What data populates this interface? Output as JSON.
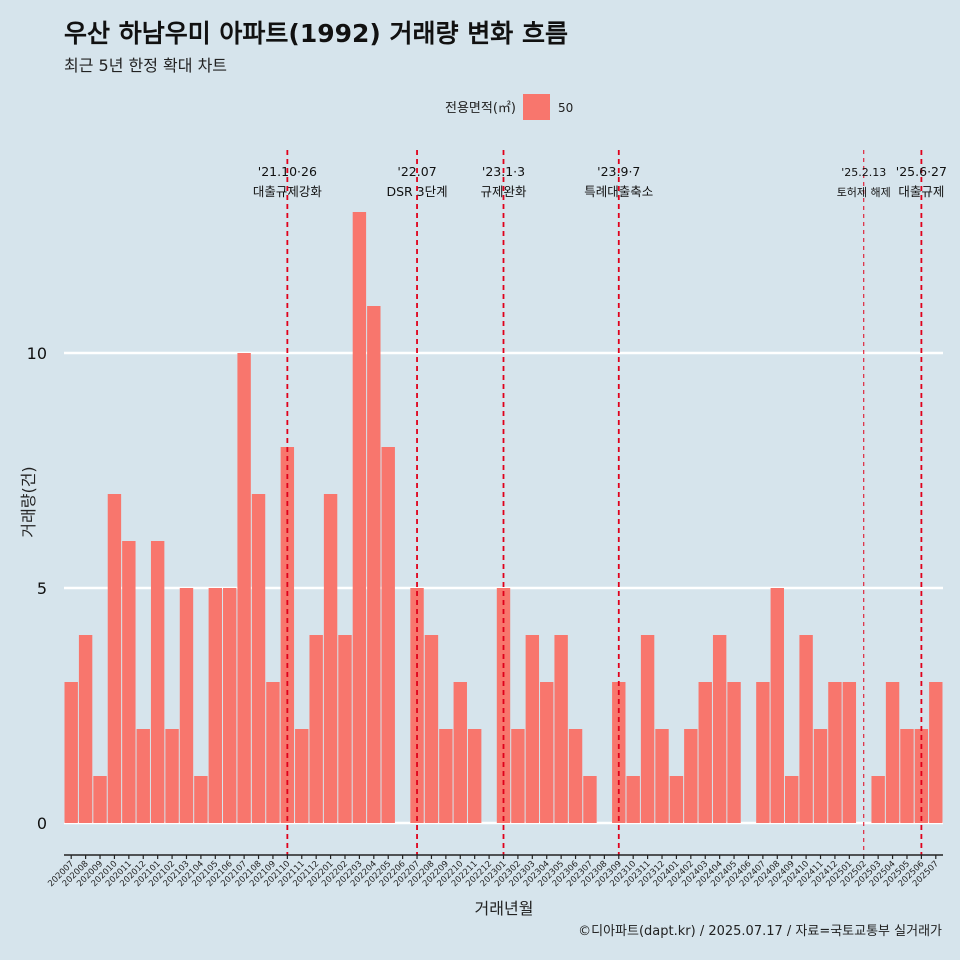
{
  "title": "우산 하남우미 아파트(1992) 거래량 변화 흐름",
  "subtitle": "최근 5년 한정 확대 차트",
  "caption": "©디아파트(dapt.kr) / 2025.07.17 / 자료=국토교통부 실거래가",
  "colors": {
    "bar": "#f8766d",
    "background": "#d6e4ec",
    "grid": "#ffffff",
    "vline": "#e0001a"
  },
  "chart_data": {
    "type": "bar",
    "xlabel": "거래년월",
    "ylabel": "거래량(건)",
    "ylim": [
      -0.6,
      13.8
    ],
    "yticks": [
      0,
      5,
      10
    ],
    "legend": {
      "title": "전용면적(㎡)",
      "entries": [
        "50"
      ],
      "placement": "top-center"
    },
    "categories": [
      "202007",
      "202008",
      "202009",
      "202010",
      "202011",
      "202012",
      "202101",
      "202102",
      "202103",
      "202104",
      "202105",
      "202106",
      "202107",
      "202108",
      "202109",
      "202110",
      "202111",
      "202112",
      "202201",
      "202202",
      "202203",
      "202204",
      "202205",
      "202206",
      "202207",
      "202208",
      "202209",
      "202210",
      "202211",
      "202212",
      "202301",
      "202302",
      "202303",
      "202304",
      "202305",
      "202306",
      "202307",
      "202308",
      "202309",
      "202310",
      "202311",
      "202312",
      "202401",
      "202402",
      "202403",
      "202404",
      "202405",
      "202406",
      "202407",
      "202408",
      "202409",
      "202410",
      "202411",
      "202412",
      "202501",
      "202502",
      "202503",
      "202504",
      "202505",
      "202506",
      "202507"
    ],
    "series": [
      {
        "name": "50",
        "values": [
          3,
          4,
          1,
          7,
          6,
          2,
          6,
          2,
          5,
          1,
          5,
          5,
          10,
          7,
          3,
          8,
          2,
          4,
          7,
          4,
          13,
          11,
          8,
          0,
          5,
          4,
          2,
          3,
          2,
          0,
          5,
          2,
          4,
          3,
          4,
          2,
          1,
          0,
          3,
          1,
          4,
          2,
          1,
          2,
          3,
          4,
          3,
          0,
          3,
          5,
          1,
          4,
          2,
          3,
          3,
          0,
          1,
          3,
          2,
          2,
          3
        ]
      }
    ],
    "annotations": [
      {
        "category": "202110",
        "line1": "'21.10·26",
        "line2": "대출규제강화",
        "style": "dashed"
      },
      {
        "category": "202207",
        "line1": "'22.07",
        "line2": "DSR 3단계",
        "style": "dashed"
      },
      {
        "category": "202301",
        "line1": "'23.1·3",
        "line2": "규제완화",
        "style": "dashed"
      },
      {
        "category": "202309",
        "line1": "'23.9·7",
        "line2": "특례대출축소",
        "style": "dashed"
      },
      {
        "category": "202502",
        "line1": "'25.2.13",
        "line2": "토허제 해제",
        "style": "thin"
      },
      {
        "category": "202506",
        "line1": "'25.6·27",
        "line2": "대출규제",
        "style": "dashed"
      }
    ]
  }
}
